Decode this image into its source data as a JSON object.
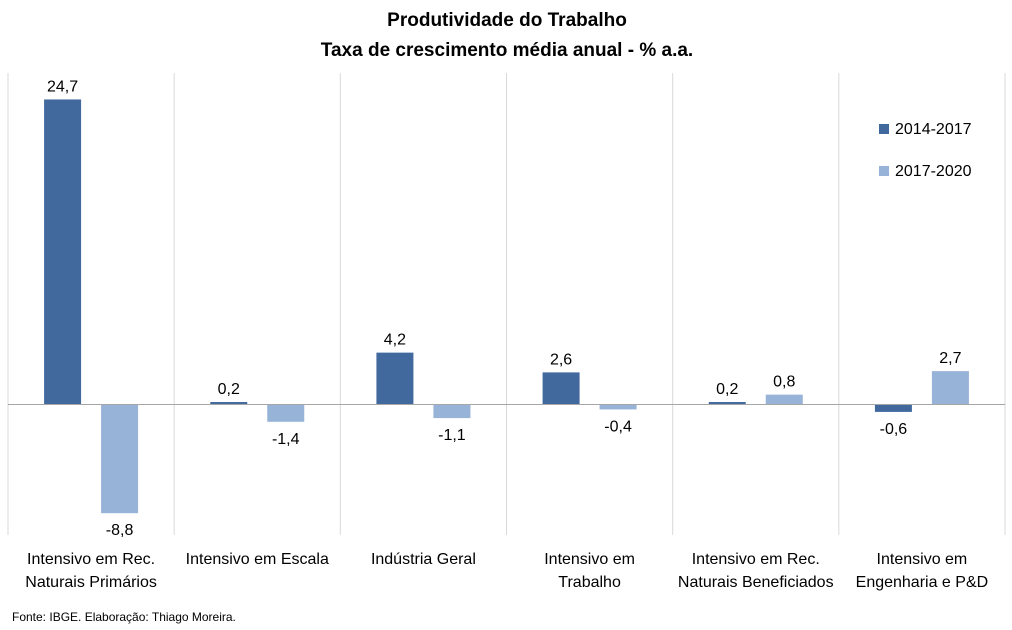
{
  "chart_data": {
    "type": "bar",
    "title": "Produtividade do Trabalho",
    "subtitle": "Taxa de crescimento média anual - % a.a.",
    "categories": [
      [
        "Intensivo em Rec.",
        "Naturais Primários"
      ],
      [
        "Intensivo em Escala"
      ],
      [
        "Indústria Geral"
      ],
      [
        "Intensivo em",
        "Trabalho"
      ],
      [
        "Intensivo em Rec.",
        "Naturais Beneficiados"
      ],
      [
        "Intensivo em",
        "Engenharia e P&D"
      ]
    ],
    "series": [
      {
        "name": "2014-2017",
        "values": [
          24.7,
          0.2,
          4.2,
          2.6,
          0.2,
          -0.6
        ],
        "labels": [
          "24,7",
          "0,2",
          "4,2",
          "2,6",
          "0,2",
          "-0,6"
        ],
        "color": "#41699E"
      },
      {
        "name": "2017-2020",
        "values": [
          -8.8,
          -1.4,
          -1.1,
          -0.4,
          0.8,
          2.7
        ],
        "labels": [
          "-8,8",
          "-1,4",
          "-1,1",
          "-0,4",
          "0,8",
          "2,7"
        ],
        "color": "#97B3D8"
      }
    ],
    "ylim": [
      -10.5,
      26.5
    ],
    "grid": "vertical category separators",
    "legend_position": "top-right"
  },
  "source": "Fonte: IBGE. Elaboração: Thiago Moreira."
}
